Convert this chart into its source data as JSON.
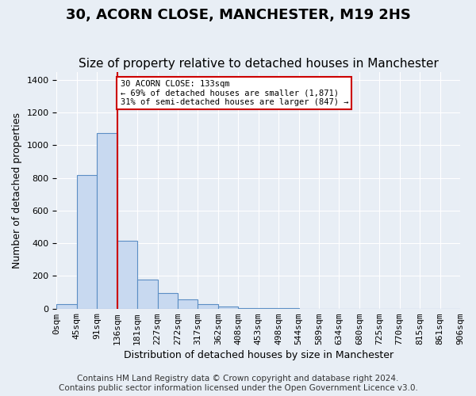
{
  "title": "30, ACORN CLOSE, MANCHESTER, M19 2HS",
  "subtitle": "Size of property relative to detached houses in Manchester",
  "xlabel": "Distribution of detached houses by size in Manchester",
  "ylabel": "Number of detached properties",
  "footer_line1": "Contains HM Land Registry data © Crown copyright and database right 2024.",
  "footer_line2": "Contains public sector information licensed under the Open Government Licence v3.0.",
  "bin_labels": [
    "0sqm",
    "45sqm",
    "91sqm",
    "136sqm",
    "181sqm",
    "227sqm",
    "272sqm",
    "317sqm",
    "362sqm",
    "408sqm",
    "453sqm",
    "498sqm",
    "544sqm",
    "589sqm",
    "634sqm",
    "680sqm",
    "725sqm",
    "770sqm",
    "815sqm",
    "861sqm",
    "906sqm"
  ],
  "bar_heights": [
    30,
    820,
    1075,
    415,
    180,
    95,
    55,
    30,
    15,
    5,
    2,
    1,
    0,
    0,
    0,
    0,
    0,
    0,
    0,
    0
  ],
  "bar_color": "#c8d9f0",
  "bar_edge_color": "#5b8ec4",
  "red_line_color": "#cc0000",
  "annotation_text": "30 ACORN CLOSE: 133sqm\n← 69% of detached houses are smaller (1,871)\n31% of semi-detached houses are larger (847) →",
  "annotation_box_color": "#ffffff",
  "annotation_box_edge": "#cc0000",
  "ylim": [
    0,
    1450
  ],
  "yticks": [
    0,
    200,
    400,
    600,
    800,
    1000,
    1200,
    1400
  ],
  "background_color": "#e8eef5",
  "plot_background": "#e8eef5",
  "grid_color": "#ffffff",
  "title_fontsize": 13,
  "subtitle_fontsize": 11,
  "axis_label_fontsize": 9,
  "tick_fontsize": 8,
  "footer_fontsize": 7.5
}
